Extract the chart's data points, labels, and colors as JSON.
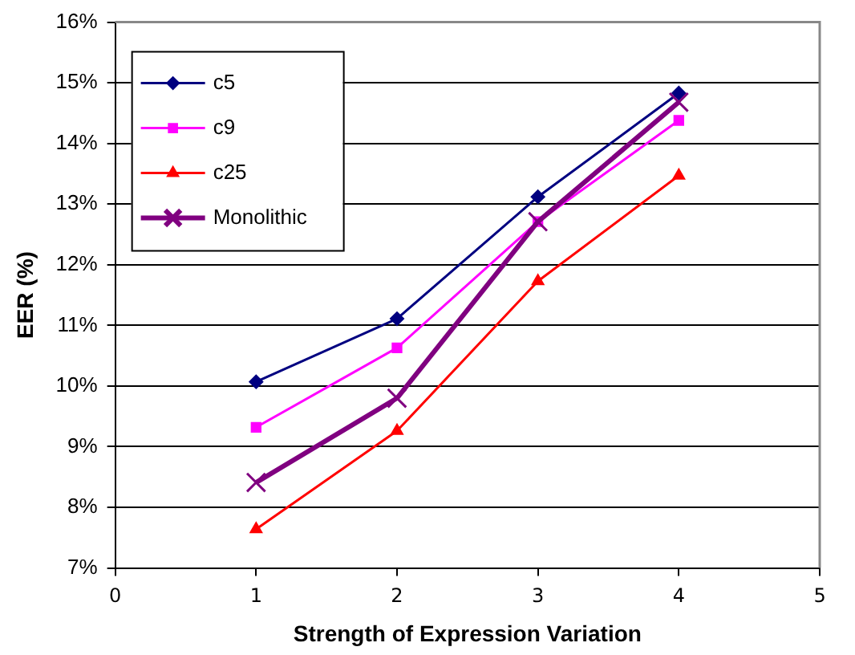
{
  "chart_data": {
    "type": "line",
    "xlabel": "Strength of Expression Variation",
    "ylabel": "EER (%)",
    "x": [
      1,
      2,
      3,
      4
    ],
    "series": [
      {
        "name": "c5",
        "color": "#000080",
        "marker": "diamond",
        "values": [
          10.07,
          11.11,
          13.12,
          14.83
        ]
      },
      {
        "name": "c9",
        "color": "#ff00ff",
        "marker": "square",
        "values": [
          9.32,
          10.63,
          12.71,
          14.38
        ]
      },
      {
        "name": "c25",
        "color": "#ff0000",
        "marker": "triangle",
        "values": [
          7.64,
          9.26,
          11.73,
          13.47
        ]
      },
      {
        "name": "Monolithic",
        "color": "#800080",
        "marker": "cross",
        "values": [
          8.41,
          9.8,
          12.71,
          14.68
        ]
      }
    ],
    "xlim": [
      0,
      5
    ],
    "xticks": [
      0,
      1,
      2,
      3,
      4,
      5
    ],
    "ylim": [
      7,
      16
    ],
    "yticks": [
      {
        "value": 7,
        "label": "7%"
      },
      {
        "value": 8,
        "label": "8%"
      },
      {
        "value": 9,
        "label": "9%"
      },
      {
        "value": 10,
        "label": "10%"
      },
      {
        "value": 11,
        "label": "11%"
      },
      {
        "value": 12,
        "label": "12%"
      },
      {
        "value": 13,
        "label": "13%"
      },
      {
        "value": 14,
        "label": "14%"
      },
      {
        "value": 15,
        "label": "15%"
      },
      {
        "value": 16,
        "label": "16%"
      }
    ],
    "grid": "y",
    "legend": "top left",
    "line_style": "solid"
  }
}
